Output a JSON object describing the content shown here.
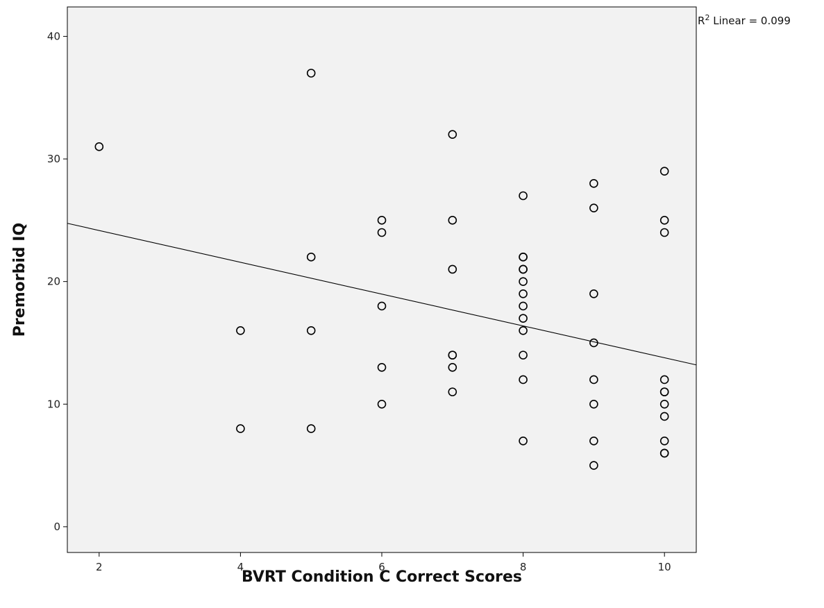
{
  "chart_data": {
    "type": "scatter",
    "title": "",
    "xlabel": "BVRT Condition C Correct Scores",
    "ylabel": "Premorbid IQ",
    "xlim": [
      1.55,
      10.45
    ],
    "ylim": [
      -2.1,
      42.4
    ],
    "x_ticks": [
      2,
      4,
      6,
      8,
      10
    ],
    "y_ticks": [
      0,
      10,
      20,
      30,
      40
    ],
    "grid": false,
    "background": "#f2f2f2",
    "marker_color": "#000000",
    "points": [
      {
        "x": 2,
        "y": 31
      },
      {
        "x": 4,
        "y": 16
      },
      {
        "x": 4,
        "y": 8
      },
      {
        "x": 5,
        "y": 37
      },
      {
        "x": 5,
        "y": 22
      },
      {
        "x": 5,
        "y": 16
      },
      {
        "x": 5,
        "y": 8
      },
      {
        "x": 6,
        "y": 25
      },
      {
        "x": 6,
        "y": 24
      },
      {
        "x": 6,
        "y": 18
      },
      {
        "x": 6,
        "y": 13
      },
      {
        "x": 6,
        "y": 10
      },
      {
        "x": 7,
        "y": 32
      },
      {
        "x": 7,
        "y": 25
      },
      {
        "x": 7,
        "y": 21
      },
      {
        "x": 7,
        "y": 14
      },
      {
        "x": 7,
        "y": 14
      },
      {
        "x": 7,
        "y": 13
      },
      {
        "x": 7,
        "y": 11
      },
      {
        "x": 8,
        "y": 27
      },
      {
        "x": 8,
        "y": 22
      },
      {
        "x": 8,
        "y": 22
      },
      {
        "x": 8,
        "y": 21
      },
      {
        "x": 8,
        "y": 21
      },
      {
        "x": 8,
        "y": 20
      },
      {
        "x": 8,
        "y": 19
      },
      {
        "x": 8,
        "y": 18
      },
      {
        "x": 8,
        "y": 17
      },
      {
        "x": 8,
        "y": 16
      },
      {
        "x": 8,
        "y": 14
      },
      {
        "x": 8,
        "y": 12
      },
      {
        "x": 8,
        "y": 7
      },
      {
        "x": 9,
        "y": 28
      },
      {
        "x": 9,
        "y": 26
      },
      {
        "x": 9,
        "y": 19
      },
      {
        "x": 9,
        "y": 15
      },
      {
        "x": 9,
        "y": 12
      },
      {
        "x": 9,
        "y": 10
      },
      {
        "x": 9,
        "y": 7
      },
      {
        "x": 9,
        "y": 5
      },
      {
        "x": 10,
        "y": 29
      },
      {
        "x": 10,
        "y": 25
      },
      {
        "x": 10,
        "y": 24
      },
      {
        "x": 10,
        "y": 12
      },
      {
        "x": 10,
        "y": 11
      },
      {
        "x": 10,
        "y": 11
      },
      {
        "x": 10,
        "y": 10
      },
      {
        "x": 10,
        "y": 9
      },
      {
        "x": 10,
        "y": 7
      },
      {
        "x": 10,
        "y": 6
      },
      {
        "x": 10,
        "y": 6
      }
    ],
    "fit_line": {
      "type": "linear",
      "x": [
        1.55,
        10.45
      ],
      "y": [
        24.75,
        13.2
      ]
    },
    "annotation": {
      "prefix": "R",
      "superscript": "2",
      "text": " Linear = 0.099"
    }
  }
}
